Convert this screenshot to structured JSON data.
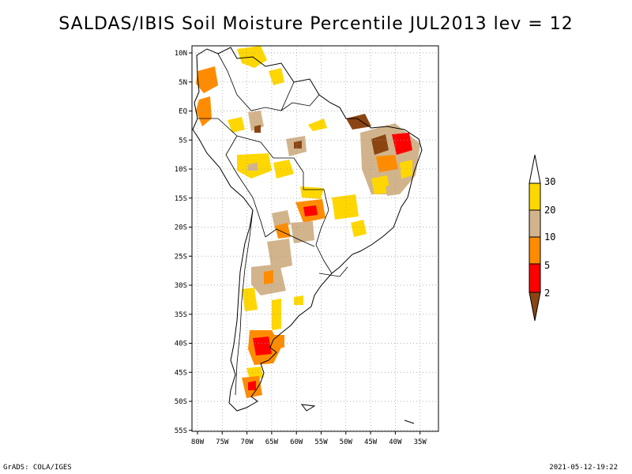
{
  "title": "SALDAS/IBIS Soil Moisture Percentile JUL2013 lev = 12",
  "footer": {
    "left": "GrADS: COLA/IGES",
    "right": "2021-05-12-19:22"
  },
  "map": {
    "lat_labels": [
      "10N",
      "5N",
      "EQ",
      "5S",
      "10S",
      "15S",
      "20S",
      "25S",
      "30S",
      "35S",
      "40S",
      "45S",
      "50S",
      "55S"
    ],
    "lon_labels": [
      "80W",
      "75W",
      "70W",
      "65W",
      "60W",
      "55W",
      "50W",
      "45W",
      "40W",
      "35W"
    ],
    "lat_range": [
      -55.5,
      11.5
    ],
    "lon_range": [
      -81,
      -33
    ]
  },
  "legend": {
    "labels": [
      "2",
      "5",
      "10",
      "20",
      "30"
    ],
    "colors": {
      "below_2": "#8b4513",
      "2_5": "#ff0000",
      "5_10": "#ff8c00",
      "10_20": "#d2b48c",
      "20_30": "#ffd700",
      "above_30": "#ffffff"
    }
  }
}
